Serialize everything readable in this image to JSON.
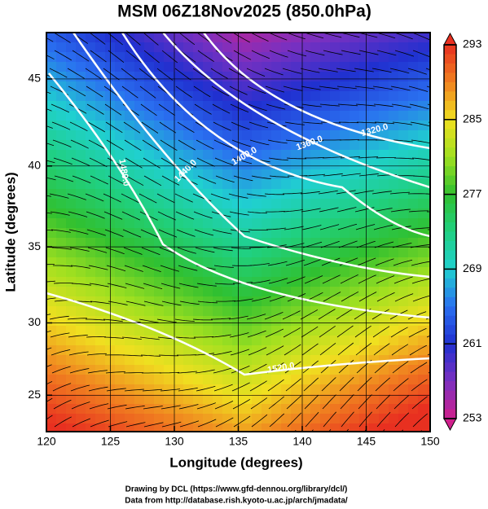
{
  "title": "MSM 06Z18Nov2025 (850.0hPa)",
  "map": {
    "xlabel": "Longitude (degrees)",
    "ylabel": "Latitude  (degrees)",
    "xlim": [
      120,
      150
    ],
    "ylim": [
      22.4,
      47.5
    ],
    "xticks": [
      120,
      125,
      130,
      135,
      140,
      145,
      150
    ],
    "yticks": [
      25,
      30,
      35,
      40,
      45
    ],
    "projection": "mercator",
    "grid": true,
    "contour_labels": [
      "1320.0",
      "1360.0",
      "1400.0",
      "1440.0",
      "1480.0",
      "1520.0"
    ]
  },
  "colorbar": {
    "lim": [
      253,
      293
    ],
    "ticks": [
      253,
      261,
      269,
      277,
      285,
      293
    ]
  },
  "credits": [
    "Drawing by DCL (https://www.gfd-dennou.org/library/dcl/)",
    "Data from http://database.rish.kyoto-u.ac.jp/arch/jmadata/"
  ]
}
